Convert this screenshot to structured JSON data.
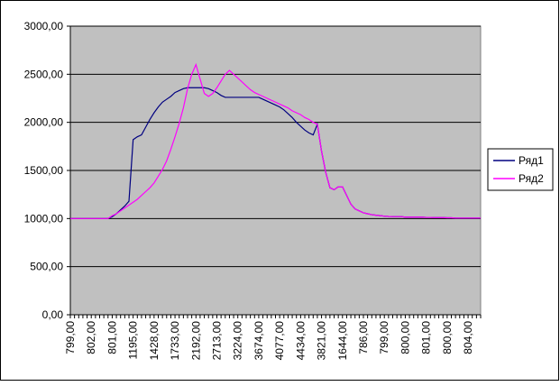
{
  "chart_data": {
    "type": "line",
    "categories": [
      "799,00",
      null,
      null,
      null,
      null,
      "802,00",
      null,
      null,
      null,
      null,
      "801,00",
      null,
      null,
      null,
      null,
      "1195,00",
      null,
      null,
      null,
      null,
      "1428,00",
      null,
      null,
      null,
      null,
      "1733,00",
      null,
      null,
      null,
      null,
      "2192,00",
      null,
      null,
      null,
      null,
      "2713,00",
      null,
      null,
      null,
      null,
      "3224,00",
      null,
      null,
      null,
      null,
      "3674,00",
      null,
      null,
      null,
      null,
      "4077,00",
      null,
      null,
      null,
      null,
      "4434,00",
      null,
      null,
      null,
      null,
      "3821,00",
      null,
      null,
      null,
      null,
      "1644,00",
      null,
      null,
      null,
      null,
      "786,00",
      null,
      null,
      null,
      null,
      "799,00",
      null,
      null,
      null,
      null,
      "800,00",
      null,
      null,
      null,
      null,
      "801,00",
      null,
      null,
      null,
      null,
      "800,00",
      null,
      null,
      null,
      null,
      "804,00",
      null,
      null,
      null
    ],
    "series": [
      {
        "name": "Ряд1",
        "color": "#000080",
        "values": [
          1000,
          1000,
          1000,
          1000,
          1000,
          1000,
          1000,
          1000,
          1000,
          1000,
          1020,
          1050,
          1090,
          1130,
          1180,
          1820,
          1850,
          1870,
          1950,
          2030,
          2100,
          2160,
          2210,
          2240,
          2270,
          2310,
          2330,
          2350,
          2360,
          2360,
          2360,
          2360,
          2360,
          2350,
          2330,
          2310,
          2280,
          2260,
          2260,
          2260,
          2260,
          2260,
          2260,
          2260,
          2260,
          2260,
          2240,
          2220,
          2200,
          2180,
          2160,
          2130,
          2090,
          2050,
          2000,
          1960,
          1920,
          1890,
          1870,
          1980,
          1700,
          1480,
          1320,
          1300,
          1330,
          1330,
          1240,
          1150,
          1100,
          1080,
          1060,
          1050,
          1040,
          1035,
          1030,
          1025,
          1022,
          1020,
          1020,
          1020,
          1015,
          1015,
          1015,
          1015,
          1015,
          1012,
          1012,
          1010,
          1010,
          1010,
          1008,
          1008,
          1005,
          1005,
          1005,
          1005,
          1005,
          1005,
          1005
        ]
      },
      {
        "name": "Ряд2",
        "color": "#ff00ff",
        "values": [
          1000,
          1000,
          1000,
          1000,
          1000,
          1000,
          1000,
          1000,
          1000,
          1000,
          1030,
          1050,
          1080,
          1110,
          1140,
          1170,
          1200,
          1240,
          1280,
          1320,
          1370,
          1440,
          1510,
          1600,
          1720,
          1850,
          1990,
          2150,
          2350,
          2500,
          2600,
          2450,
          2300,
          2270,
          2300,
          2360,
          2430,
          2500,
          2540,
          2500,
          2460,
          2420,
          2380,
          2340,
          2310,
          2290,
          2270,
          2250,
          2230,
          2210,
          2190,
          2170,
          2150,
          2120,
          2100,
          2080,
          2050,
          2030,
          2000,
          1980,
          1700,
          1480,
          1320,
          1300,
          1330,
          1330,
          1240,
          1150,
          1100,
          1080,
          1060,
          1050,
          1040,
          1035,
          1030,
          1025,
          1022,
          1020,
          1020,
          1020,
          1015,
          1015,
          1015,
          1015,
          1015,
          1012,
          1012,
          1010,
          1010,
          1010,
          1008,
          1008,
          1005,
          1005,
          1005,
          1005,
          1005,
          1005,
          1005
        ]
      }
    ],
    "ylim": [
      0,
      3000
    ],
    "yticks": [
      {
        "value": 0,
        "label": "0,00"
      },
      {
        "value": 500,
        "label": "500,00"
      },
      {
        "value": 1000,
        "label": "1000,00"
      },
      {
        "value": 1500,
        "label": "1500,00"
      },
      {
        "value": 2000,
        "label": "2000,00"
      },
      {
        "value": 2500,
        "label": "2500,00"
      },
      {
        "value": 3000,
        "label": "3000,00"
      }
    ],
    "grid": true,
    "legend": "right"
  }
}
